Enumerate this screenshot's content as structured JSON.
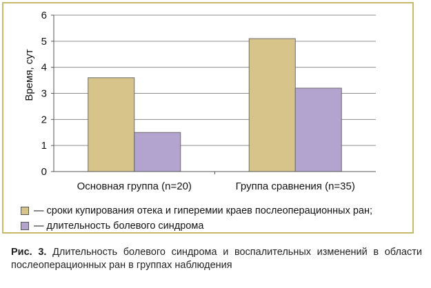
{
  "chart_data": {
    "type": "bar",
    "categories": [
      "Основная группа (n=20)",
      "Группа сравнения (n=35)"
    ],
    "series": [
      {
        "name": "— сроки купирования отека и гиперемии краев послеоперационных ран;",
        "values": [
          3.6,
          5.1
        ],
        "color": "#d6c48a"
      },
      {
        "name": "— длительность болевого синдрома",
        "values": [
          1.5,
          3.2
        ],
        "color": "#b3a3cf"
      }
    ],
    "ylabel": "Время, сут",
    "ylim": [
      0,
      6
    ],
    "yticks": [
      0,
      1,
      2,
      3,
      4,
      5,
      6
    ],
    "grid": true,
    "legend": "bottom"
  },
  "caption": {
    "prefix": "Рис. 3.",
    "text": "Длительность болевого синдрома и воспалительных изменений в области послеоперационных ран в группах наблюдения"
  },
  "colors": {
    "frame": "#c8b86a",
    "bar_edge": "#6b6b6b"
  }
}
